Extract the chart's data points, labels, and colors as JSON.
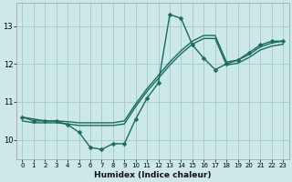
{
  "xlabel": "Humidex (Indice chaleur)",
  "bg_color": "#cce8e8",
  "grid_color": "#aacccc",
  "line_color": "#1a6b5e",
  "x_data": [
    0,
    1,
    2,
    3,
    4,
    5,
    6,
    7,
    8,
    9,
    10,
    11,
    12,
    13,
    14,
    15,
    16,
    17,
    18,
    19,
    20,
    21,
    22,
    23
  ],
  "y_main": [
    10.6,
    10.5,
    10.5,
    10.5,
    10.4,
    10.2,
    9.8,
    9.75,
    9.9,
    9.9,
    10.55,
    11.1,
    11.5,
    13.3,
    13.2,
    12.5,
    12.15,
    11.85,
    12.0,
    12.1,
    12.3,
    12.5,
    12.6,
    12.6
  ],
  "y_line1": [
    10.6,
    10.55,
    10.5,
    10.5,
    10.48,
    10.45,
    10.45,
    10.45,
    10.45,
    10.5,
    10.95,
    11.35,
    11.7,
    12.05,
    12.35,
    12.6,
    12.75,
    12.75,
    12.05,
    12.1,
    12.25,
    12.45,
    12.55,
    12.6
  ],
  "y_line2": [
    10.5,
    10.45,
    10.45,
    10.45,
    10.42,
    10.38,
    10.38,
    10.38,
    10.38,
    10.42,
    10.88,
    11.28,
    11.62,
    11.97,
    12.27,
    12.52,
    12.67,
    12.67,
    11.97,
    12.02,
    12.17,
    12.37,
    12.47,
    12.52
  ],
  "ylim": [
    9.5,
    13.6
  ],
  "xlim": [
    -0.5,
    23.5
  ],
  "yticks": [
    10,
    11,
    12,
    13
  ],
  "xticks": [
    0,
    1,
    2,
    3,
    4,
    5,
    6,
    7,
    8,
    9,
    10,
    11,
    12,
    13,
    14,
    15,
    16,
    17,
    18,
    19,
    20,
    21,
    22,
    23
  ],
  "markersize": 2.5,
  "linewidth": 1.0
}
